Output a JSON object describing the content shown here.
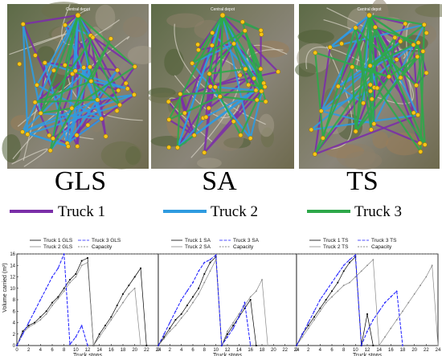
{
  "maps": {
    "depot_label": "Central depot",
    "panels": [
      {
        "label": "GLS",
        "routes": {
          "purple": 6,
          "blue": 5,
          "green": 3
        }
      },
      {
        "label": "SA",
        "routes": {
          "purple": 5,
          "blue": 4,
          "green": 5
        }
      },
      {
        "label": "TS",
        "routes": {
          "purple": 5,
          "blue": 4,
          "green": 6
        }
      }
    ]
  },
  "route_legend": [
    {
      "label": "Truck 1",
      "color": "#7B2FA8"
    },
    {
      "label": "Truck 2",
      "color": "#2F9BE0"
    },
    {
      "label": "Truck 3",
      "color": "#2EA84A"
    }
  ],
  "colors": {
    "truck1": "#000000",
    "truck2": "#888888",
    "truck3": "#1a1aff",
    "capacity": "#666666"
  },
  "chart_data": [
    {
      "type": "line",
      "xlabel": "Truck stops",
      "ylabel": "Volume carried (m³)",
      "xlim": [
        0,
        24
      ],
      "ylim": [
        0,
        16
      ],
      "xticks": [
        0,
        2,
        4,
        6,
        8,
        10,
        12,
        14,
        16,
        18,
        20,
        22,
        24
      ],
      "yticks": [
        0,
        2,
        4,
        6,
        8,
        10,
        12,
        14,
        16
      ],
      "legend": {
        "truck1": "Truck 1 GLS",
        "truck2": "Truck 2 GLS",
        "truck3": "Truck 3 GLS",
        "capacity": "Capacity"
      },
      "capacity": 16,
      "series": [
        {
          "key": "truck1",
          "x": [
            0,
            1,
            2,
            3,
            4,
            5,
            6,
            7,
            8,
            9,
            10,
            11,
            12,
            13,
            14,
            15,
            16,
            17,
            18,
            19,
            20,
            21,
            22
          ],
          "y": [
            0,
            2.5,
            3.5,
            4,
            5,
            6,
            7.5,
            8.5,
            10,
            11.5,
            12.5,
            14.8,
            15.3,
            0,
            2,
            3.5,
            5,
            7,
            9,
            10.5,
            12,
            13.5,
            0
          ]
        },
        {
          "key": "truck2",
          "x": [
            0,
            1,
            2,
            3,
            4,
            5,
            6,
            7,
            8,
            9,
            10,
            11,
            12,
            13,
            14,
            15,
            16,
            17,
            18,
            19,
            20,
            21
          ],
          "y": [
            0,
            2.2,
            3.2,
            3.8,
            4.5,
            5.5,
            7,
            8.2,
            9.5,
            11,
            12,
            14,
            14.5,
            0,
            1.5,
            3,
            4.5,
            6,
            7.5,
            9,
            10,
            0
          ]
        },
        {
          "key": "truck3",
          "x": [
            0,
            1,
            2,
            3,
            4,
            5,
            6,
            7,
            8,
            9,
            10,
            11,
            12
          ],
          "y": [
            0,
            2,
            4,
            6,
            8,
            10,
            12,
            13.5,
            16,
            0.2,
            1.5,
            3.5,
            0
          ]
        }
      ]
    },
    {
      "type": "line",
      "xlabel": "Truck stops",
      "ylabel": "",
      "xlim": [
        0,
        24
      ],
      "ylim": [
        0,
        16
      ],
      "xticks": [
        0,
        2,
        4,
        6,
        8,
        10,
        12,
        14,
        16,
        18,
        20,
        22,
        24
      ],
      "yticks": [],
      "legend": {
        "truck1": "Truck 1 SA",
        "truck2": "Truck 2 SA",
        "truck3": "Truck 3 SA",
        "capacity": "Capacity"
      },
      "capacity": 16,
      "series": [
        {
          "key": "truck1",
          "x": [
            0,
            1,
            2,
            3,
            4,
            5,
            6,
            7,
            8,
            9,
            10,
            11,
            12,
            13,
            14,
            15,
            16,
            17
          ],
          "y": [
            0,
            1.5,
            3,
            4.5,
            5.5,
            7,
            8.5,
            10,
            12.5,
            14.5,
            15.5,
            0,
            2,
            3.5,
            5,
            6.5,
            8,
            0
          ]
        },
        {
          "key": "truck2",
          "x": [
            0,
            1,
            2,
            3,
            4,
            5,
            6,
            7,
            8,
            9,
            10,
            11,
            12,
            13,
            14,
            15,
            16,
            17,
            18,
            19
          ],
          "y": [
            0,
            1.2,
            2.5,
            3.5,
            4.8,
            6,
            7.5,
            9,
            11,
            13,
            15,
            0,
            2.5,
            4,
            5.5,
            7,
            8.5,
            9.5,
            11.5,
            0
          ]
        },
        {
          "key": "truck3",
          "x": [
            0,
            1,
            2,
            3,
            4,
            5,
            6,
            7,
            8,
            9,
            10,
            11,
            12,
            13,
            14,
            15,
            16
          ],
          "y": [
            0,
            2,
            4,
            6,
            8,
            9.5,
            11,
            13,
            14.5,
            15,
            15.8,
            0,
            1.5,
            3,
            5,
            7.5,
            0
          ]
        }
      ]
    },
    {
      "type": "line",
      "xlabel": "Truck stops",
      "ylabel": "",
      "xlim": [
        0,
        24
      ],
      "ylim": [
        0,
        16
      ],
      "xticks": [
        0,
        2,
        4,
        6,
        8,
        10,
        12,
        14,
        16,
        18,
        20,
        22,
        24
      ],
      "yticks": [],
      "legend": {
        "truck1": "Truck 1 TS",
        "truck2": "Truck 2 TS",
        "truck3": "Truck 3 TS",
        "capacity": "Capacity"
      },
      "capacity": 16,
      "series": [
        {
          "key": "truck1",
          "x": [
            0,
            1,
            2,
            3,
            4,
            5,
            6,
            7,
            8,
            9,
            10,
            11,
            12,
            13
          ],
          "y": [
            0,
            2,
            3.5,
            5,
            6.5,
            8,
            9.5,
            11,
            13,
            14.5,
            15.5,
            0,
            5.5,
            0
          ]
        },
        {
          "key": "truck2",
          "x": [
            0,
            1,
            2,
            3,
            4,
            5,
            6,
            7,
            8,
            9,
            10,
            11,
            12,
            13,
            14,
            15,
            16,
            17,
            18,
            19,
            20,
            21,
            22,
            23,
            24
          ],
          "y": [
            0,
            1.5,
            3,
            4.5,
            6,
            7.5,
            8.5,
            9.5,
            10.5,
            11,
            12,
            13,
            14,
            15,
            0,
            1.5,
            3,
            4.5,
            6,
            7.5,
            9,
            10.5,
            12,
            14,
            0
          ]
        },
        {
          "key": "truck3",
          "x": [
            0,
            1,
            2,
            3,
            4,
            5,
            6,
            7,
            8,
            9,
            10,
            11,
            12,
            13,
            14,
            15,
            16,
            17,
            18
          ],
          "y": [
            0,
            2,
            4,
            6,
            8,
            9.5,
            11,
            12.5,
            14,
            15,
            15.8,
            0,
            2.5,
            4.5,
            6,
            7.5,
            8.5,
            9.5,
            0
          ]
        }
      ]
    }
  ]
}
